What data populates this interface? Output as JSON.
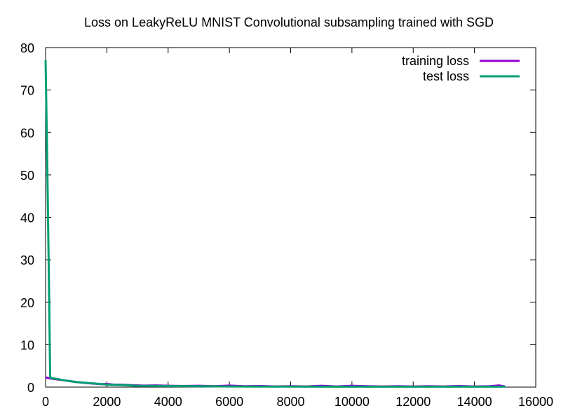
{
  "chart_data": {
    "type": "line",
    "title": "Loss on LeakyReLU MNIST Convolutional subsampling trained with SGD",
    "xlabel": "",
    "ylabel": "",
    "xlim": [
      0,
      16000
    ],
    "ylim": [
      0,
      80
    ],
    "x_ticks": [
      0,
      2000,
      4000,
      6000,
      8000,
      10000,
      12000,
      14000,
      16000
    ],
    "y_ticks": [
      0,
      10,
      20,
      30,
      40,
      50,
      60,
      70,
      80
    ],
    "grid": false,
    "legend_position": "top-right",
    "series": [
      {
        "name": "training loss",
        "color": "#9400d3",
        "x": [
          0,
          100,
          200,
          400,
          600,
          800,
          1000,
          1200,
          1400,
          1600,
          1800,
          2000,
          2200,
          2500,
          2800,
          3200,
          3600,
          4000,
          4500,
          5000,
          5500,
          6000,
          6500,
          7000,
          7500,
          8000,
          8500,
          9000,
          9500,
          10000,
          10500,
          11000,
          11500,
          12000,
          12500,
          13000,
          13500,
          14000,
          14500,
          14800,
          15000
        ],
        "values": [
          2.3,
          2.1,
          2.0,
          1.8,
          1.6,
          1.4,
          1.2,
          1.05,
          0.9,
          0.8,
          0.7,
          0.75,
          0.6,
          0.55,
          0.45,
          0.35,
          0.4,
          0.3,
          0.25,
          0.3,
          0.2,
          0.35,
          0.2,
          0.25,
          0.15,
          0.2,
          0.15,
          0.3,
          0.15,
          0.3,
          0.2,
          0.15,
          0.2,
          0.15,
          0.2,
          0.15,
          0.25,
          0.15,
          0.2,
          0.4,
          0.15
        ]
      },
      {
        "name": "test loss",
        "color": "#009e73",
        "x": [
          0,
          50,
          100,
          150,
          200,
          400,
          600,
          800,
          1000,
          1500,
          2000,
          2500,
          3000,
          4000,
          5000,
          6000,
          7000,
          8000,
          9000,
          10000,
          11000,
          12000,
          13000,
          14000,
          15000
        ],
        "values": [
          77,
          55,
          30,
          2.3,
          2.1,
          1.9,
          1.6,
          1.4,
          1.2,
          0.9,
          0.6,
          0.5,
          0.3,
          0.25,
          0.2,
          0.15,
          0.12,
          0.12,
          0.1,
          0.1,
          0.1,
          0.1,
          0.1,
          0.1,
          0.1
        ]
      }
    ]
  }
}
